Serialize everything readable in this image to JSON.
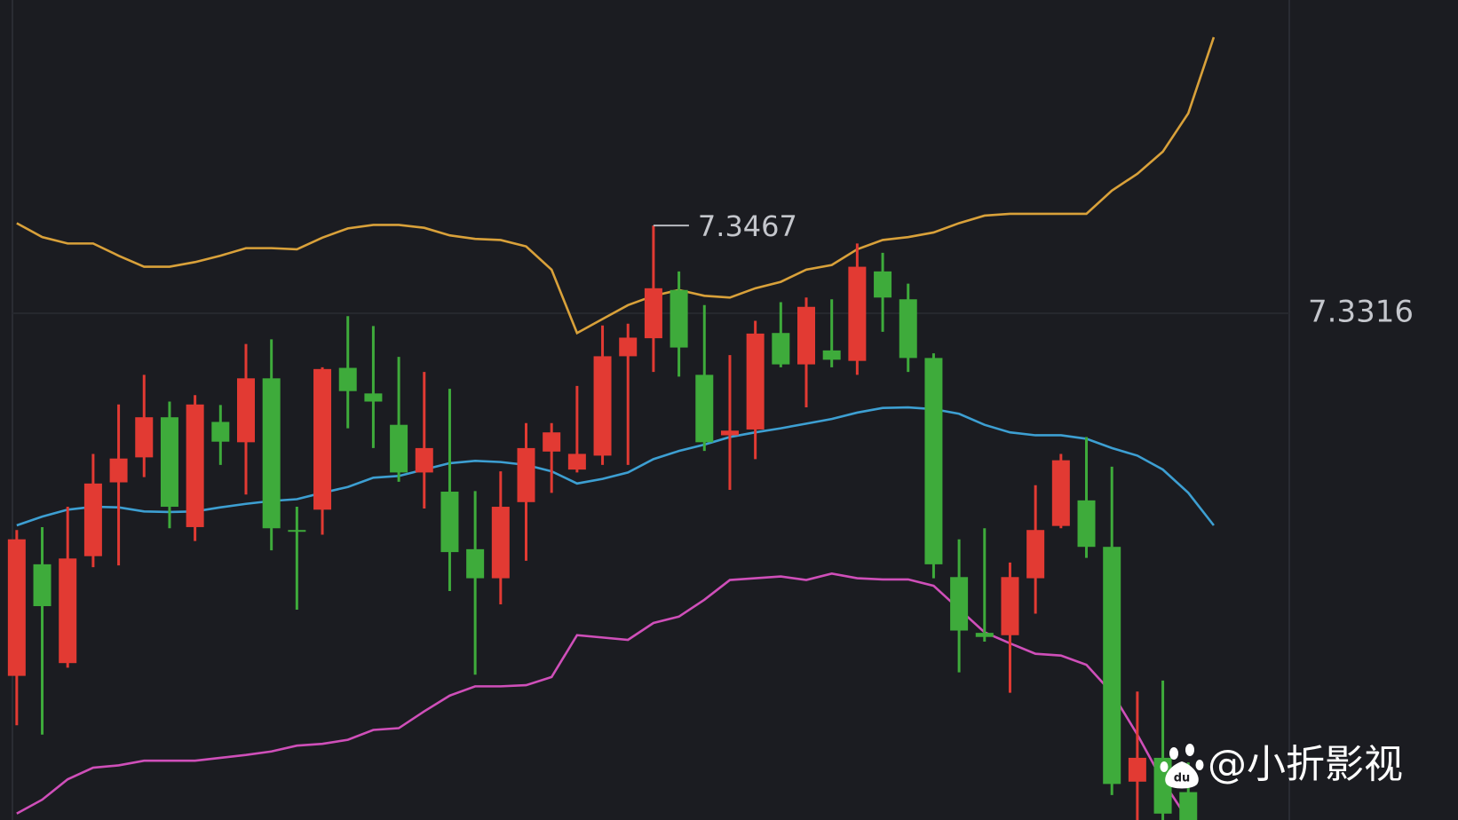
{
  "chart_data": {
    "type": "candlestick",
    "ylim": [
      7.2444,
      7.3855
    ],
    "yticks": [
      7.3316
    ],
    "grid": true,
    "candles": {
      "up_color": "#e23a33",
      "down_color": "#3eab3b",
      "open": [
        7.2692,
        7.2884,
        7.2714,
        7.2898,
        7.3025,
        7.3068,
        7.3137,
        7.2948,
        7.3129,
        7.3094,
        7.3204,
        7.2943,
        7.2978,
        7.3222,
        7.3178,
        7.3124,
        7.3042,
        7.3009,
        7.291,
        7.286,
        7.2991,
        7.3078,
        7.3047,
        7.3071,
        7.3242,
        7.3273,
        7.3356,
        7.321,
        7.3106,
        7.3116,
        7.3282,
        7.3228,
        7.3252,
        7.3234,
        7.3388,
        7.334,
        7.3239,
        7.2862,
        7.2766,
        7.2762,
        7.286,
        7.295,
        7.2994,
        7.2914,
        7.251,
        7.2551,
        7.2492,
        null
      ],
      "high": [
        7.2943,
        7.2948,
        7.2983,
        7.3074,
        7.3159,
        7.321,
        7.3164,
        7.3175,
        7.3158,
        7.3263,
        7.3271,
        7.2983,
        7.3223,
        7.3311,
        7.3294,
        7.3241,
        7.3215,
        7.3186,
        7.301,
        7.3044,
        7.3127,
        7.3127,
        7.3191,
        7.3295,
        7.3298,
        7.3467,
        7.3388,
        7.333,
        7.3244,
        7.3303,
        7.3335,
        7.3343,
        7.334,
        7.3436,
        7.342,
        7.3367,
        7.3247,
        7.2927,
        7.2946,
        7.2887,
        7.302,
        7.3074,
        7.3103,
        7.3052,
        7.2665,
        7.2684,
        7.2543,
        null
      ],
      "low": [
        7.2607,
        7.2591,
        7.2706,
        7.2879,
        7.2882,
        7.3034,
        7.2946,
        7.2924,
        7.3055,
        7.3004,
        7.2908,
        7.2806,
        7.2935,
        7.3118,
        7.3084,
        7.3026,
        7.298,
        7.2838,
        7.2694,
        7.2815,
        7.289,
        7.3007,
        7.3042,
        7.3055,
        7.3055,
        7.3215,
        7.3207,
        7.3079,
        7.3012,
        7.3065,
        7.3223,
        7.3154,
        7.3223,
        7.321,
        7.3284,
        7.3215,
        7.286,
        7.2698,
        7.2751,
        7.2663,
        7.2799,
        7.2946,
        7.2895,
        7.2487,
        7.2431,
        7.2431,
        7.2415,
        null
      ],
      "close": [
        7.2927,
        7.2812,
        7.2894,
        7.3023,
        7.3066,
        7.3137,
        7.2983,
        7.3159,
        7.3095,
        7.3204,
        7.2946,
        7.294,
        7.322,
        7.3182,
        7.3164,
        7.3042,
        7.3084,
        7.2905,
        7.286,
        7.2983,
        7.3084,
        7.3111,
        7.3074,
        7.3242,
        7.3274,
        7.3359,
        7.3257,
        7.3094,
        7.3114,
        7.3281,
        7.3228,
        7.3327,
        7.3236,
        7.3396,
        7.3343,
        7.3239,
        7.2884,
        7.277,
        7.2759,
        7.2862,
        7.2943,
        7.3063,
        7.2914,
        7.2506,
        7.2551,
        7.2455,
        7.2423,
        null
      ]
    },
    "bands": [
      {
        "color": "#d9a13a",
        "values": [
          7.3471,
          7.3447,
          7.3436,
          7.3436,
          7.3415,
          7.3396,
          7.3396,
          7.3404,
          7.3415,
          7.3428,
          7.3428,
          7.3426,
          7.3446,
          7.3462,
          7.3468,
          7.3468,
          7.3463,
          7.345,
          7.3444,
          7.3442,
          7.3431,
          7.3391,
          7.3282,
          7.3306,
          7.333,
          7.3346,
          7.3356,
          7.3346,
          7.3343,
          7.3359,
          7.337,
          7.3391,
          7.3399,
          7.3426,
          7.3442,
          7.3447,
          7.3455,
          7.3471,
          7.3484,
          7.3487,
          7.3487,
          7.3487,
          7.3487,
          7.3527,
          7.3556,
          7.3594,
          7.366,
          7.3791
        ]
      },
      {
        "color": "#3d9fd2",
        "values": [
          7.2951,
          7.2966,
          7.2978,
          7.2983,
          7.2982,
          7.2975,
          7.2974,
          7.2975,
          7.2982,
          7.2988,
          7.2993,
          7.2996,
          7.3007,
          7.3017,
          7.3033,
          7.3036,
          7.3047,
          7.3058,
          7.3062,
          7.306,
          7.3055,
          7.3044,
          7.3023,
          7.3031,
          7.3042,
          7.3065,
          7.3079,
          7.309,
          7.3103,
          7.3111,
          7.3118,
          7.3126,
          7.3134,
          7.3145,
          7.3153,
          7.3154,
          7.3151,
          7.3143,
          7.3124,
          7.3111,
          7.3106,
          7.3106,
          7.31,
          7.3084,
          7.3071,
          7.3047,
          7.3007,
          7.2951
        ]
      },
      {
        "color": "#cf4fb9",
        "values": [
          7.2455,
          7.2479,
          7.2514,
          7.2534,
          7.2538,
          7.2546,
          7.2546,
          7.2546,
          7.2551,
          7.2556,
          7.2562,
          7.2572,
          7.2575,
          7.2582,
          7.2599,
          7.2602,
          7.2631,
          7.2658,
          7.2674,
          7.2674,
          7.2676,
          7.269,
          7.2762,
          7.2758,
          7.2754,
          7.2783,
          7.2794,
          7.2823,
          7.2857,
          7.286,
          7.2863,
          7.2857,
          7.2868,
          7.286,
          7.2858,
          7.2858,
          7.2847,
          7.2807,
          7.2767,
          7.2748,
          7.273,
          7.2727,
          7.2711,
          7.2663,
          7.2591,
          7.2511,
          7.2444,
          null
        ]
      }
    ],
    "watermark": "@小折影视"
  }
}
